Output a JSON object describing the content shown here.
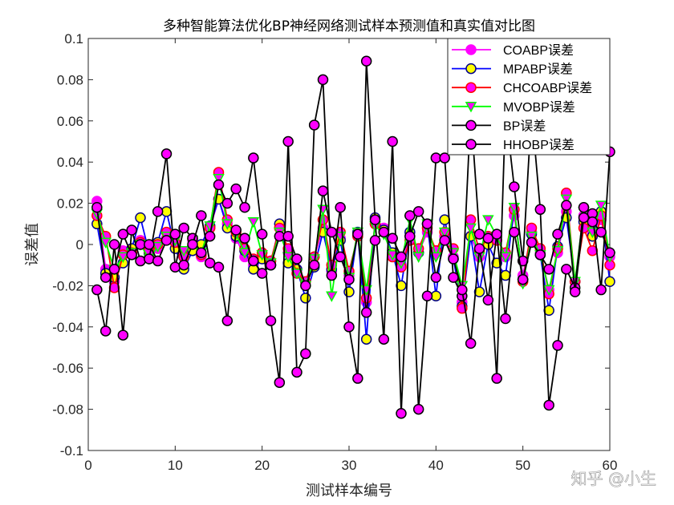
{
  "chart_data": {
    "type": "line",
    "title": "多种智能算法优化BP神经网络测试样本预测值和真实值对比图",
    "xlabel": "测试样本编号",
    "ylabel": "误差值",
    "xlim": [
      0,
      60
    ],
    "ylim": [
      -0.1,
      0.1
    ],
    "xticks": [
      "0",
      "10",
      "20",
      "30",
      "40",
      "50",
      "60"
    ],
    "yticks": [
      "0.1",
      "0.08",
      "0.06",
      "0.04",
      "0.02",
      "0",
      "-0.02",
      "-0.04",
      "-0.06",
      "-0.08",
      "-0.1"
    ],
    "grid": false,
    "legend_position": "top-right",
    "x": [
      1,
      2,
      3,
      4,
      5,
      6,
      7,
      8,
      9,
      10,
      11,
      12,
      13,
      14,
      15,
      16,
      17,
      18,
      19,
      20,
      21,
      22,
      23,
      24,
      25,
      26,
      27,
      28,
      29,
      30,
      31,
      32,
      33,
      34,
      35,
      36,
      37,
      38,
      39,
      40,
      41,
      42,
      43,
      44,
      45,
      46,
      47,
      48,
      49,
      50,
      51,
      52,
      53,
      54,
      55,
      56,
      57,
      58,
      59,
      60
    ],
    "series": [
      {
        "name": "COABP误差",
        "line": "#ff00ff",
        "edge": "#ff00ff",
        "fill": "#ff00ff",
        "marker": "circle",
        "values": [
          0.021,
          -0.012,
          -0.018,
          -0.003,
          -0.004,
          0.002,
          -0.006,
          -0.002,
          0.003,
          0.004,
          -0.004,
          0.002,
          -0.006,
          0.008,
          0.022,
          0.01,
          0.003,
          -0.006,
          -0.01,
          -0.006,
          -0.008,
          0.008,
          -0.004,
          -0.012,
          -0.018,
          -0.006,
          0.008,
          -0.013,
          0.003,
          -0.015,
          0.004,
          -0.028,
          0.01,
          0.008,
          -0.006,
          -0.01,
          0.004,
          -0.004,
          0.006,
          -0.003,
          0.004,
          -0.006,
          -0.028,
          0.004,
          -0.006,
          0.002,
          0.004,
          -0.006,
          0.014,
          -0.015,
          0.006,
          -0.004,
          -0.022,
          -0.004,
          0.016,
          -0.018,
          0.014,
          0.006,
          0.012,
          -0.006
        ]
      },
      {
        "name": "MPABP误差",
        "line": "#0000ff",
        "edge": "#00008b",
        "fill": "#ffff00",
        "marker": "circle",
        "values": [
          0.01,
          -0.014,
          -0.016,
          -0.009,
          -0.002,
          0.013,
          -0.004,
          0.001,
          0.016,
          -0.002,
          -0.012,
          -0.003,
          0.0,
          0.009,
          0.022,
          0.008,
          0.004,
          -0.003,
          -0.012,
          -0.007,
          -0.01,
          0.01,
          -0.009,
          -0.012,
          -0.026,
          -0.011,
          0.006,
          -0.012,
          0.002,
          -0.023,
          0.006,
          -0.046,
          0.013,
          0.007,
          -0.004,
          -0.02,
          0.006,
          -0.004,
          0.01,
          -0.025,
          0.012,
          -0.007,
          -0.03,
          0.004,
          -0.023,
          0.0,
          -0.009,
          -0.015,
          0.017,
          -0.017,
          0.005,
          -0.005,
          -0.032,
          -0.001,
          0.013,
          -0.018,
          0.011,
          0.004,
          0.016,
          -0.018
        ]
      },
      {
        "name": "CHCOABP误差",
        "line": "#ff0000",
        "edge": "#ff0000",
        "fill": "#ff00ff",
        "marker": "circle",
        "values": [
          0.014,
          0.004,
          -0.021,
          -0.005,
          -0.004,
          0.001,
          -0.003,
          0.0,
          0.006,
          0.001,
          -0.006,
          0.003,
          -0.005,
          0.008,
          0.035,
          0.012,
          0.006,
          -0.002,
          -0.007,
          -0.004,
          -0.008,
          0.008,
          -0.002,
          -0.014,
          -0.018,
          -0.006,
          0.012,
          -0.01,
          0.006,
          -0.013,
          0.004,
          -0.026,
          0.01,
          0.006,
          -0.006,
          -0.011,
          0.002,
          -0.002,
          0.008,
          -0.003,
          0.006,
          -0.002,
          -0.031,
          0.012,
          -0.003,
          0.004,
          0.002,
          -0.004,
          0.017,
          -0.018,
          0.008,
          -0.002,
          -0.024,
          -0.002,
          0.025,
          -0.018,
          0.008,
          -0.003,
          0.014,
          -0.01
        ]
      },
      {
        "name": "MVOBP误差",
        "line": "#00ff00",
        "edge": "#00ff00",
        "fill": "#ff00ff",
        "marker": "triangle-down",
        "values": [
          0.015,
          0.001,
          -0.012,
          -0.006,
          -0.004,
          0.0,
          -0.007,
          -0.001,
          0.004,
          0.002,
          -0.003,
          0.002,
          -0.004,
          0.009,
          0.032,
          0.01,
          0.005,
          -0.004,
          0.011,
          -0.005,
          -0.009,
          0.006,
          -0.006,
          -0.014,
          -0.02,
          -0.007,
          0.017,
          -0.025,
          0.004,
          -0.016,
          0.006,
          -0.022,
          0.009,
          0.005,
          -0.005,
          -0.009,
          0.012,
          -0.006,
          0.01,
          -0.006,
          0.006,
          -0.004,
          -0.02,
          0.008,
          -0.006,
          0.012,
          0.004,
          -0.006,
          0.018,
          -0.019,
          0.004,
          -0.005,
          -0.022,
          -0.003,
          0.022,
          -0.018,
          0.016,
          0.006,
          0.019,
          -0.006
        ]
      },
      {
        "name": "BP误差",
        "line": "#000000",
        "edge": "#000000",
        "fill": "#ff00ff",
        "marker": "circle",
        "values": [
          -0.022,
          -0.042,
          0.0,
          -0.044,
          0.007,
          -0.008,
          -0.007,
          0.016,
          0.044,
          -0.011,
          0.008,
          0.003,
          -0.004,
          0.004,
          0.029,
          0.02,
          0.027,
          0.018,
          0.042,
          0.005,
          -0.037,
          -0.067,
          0.05,
          -0.062,
          -0.053,
          0.058,
          0.08,
          -0.015,
          0.018,
          -0.04,
          -0.065,
          0.089,
          0.012,
          -0.046,
          0.05,
          -0.082,
          0.014,
          -0.08,
          -0.025,
          0.042,
          0.042,
          -0.016,
          -0.025,
          0.065,
          0.005,
          0.003,
          -0.065,
          0.065,
          0.028,
          -0.008,
          0.065,
          0.017,
          -0.078,
          -0.049,
          -0.012,
          -0.021,
          0.018,
          0.015,
          -0.022,
          0.045
        ]
      },
      {
        "name": "HHOBP误差",
        "line": "#000000",
        "edge": "#000000",
        "fill": "#ff00ff",
        "marker": "circle",
        "values": [
          0.018,
          -0.016,
          -0.012,
          0.005,
          -0.005,
          0.0,
          0.0,
          -0.008,
          0.002,
          0.005,
          -0.01,
          0.0,
          0.014,
          -0.009,
          -0.011,
          -0.037,
          0.007,
          0.003,
          -0.008,
          -0.014,
          -0.01,
          0.004,
          0.004,
          -0.007,
          -0.02,
          -0.01,
          0.026,
          0.006,
          -0.006,
          -0.017,
          0.005,
          -0.033,
          0.002,
          0.006,
          0.003,
          -0.006,
          0.004,
          0.016,
          0.01,
          -0.016,
          0.002,
          -0.007,
          -0.022,
          -0.048,
          -0.002,
          -0.027,
          0.005,
          -0.036,
          0.006,
          -0.017,
          0.001,
          -0.005,
          -0.012,
          0.005,
          0.019,
          -0.023,
          0.013,
          0.011,
          0.006,
          -0.004
        ]
      }
    ]
  },
  "watermark": "知乎 @小生"
}
